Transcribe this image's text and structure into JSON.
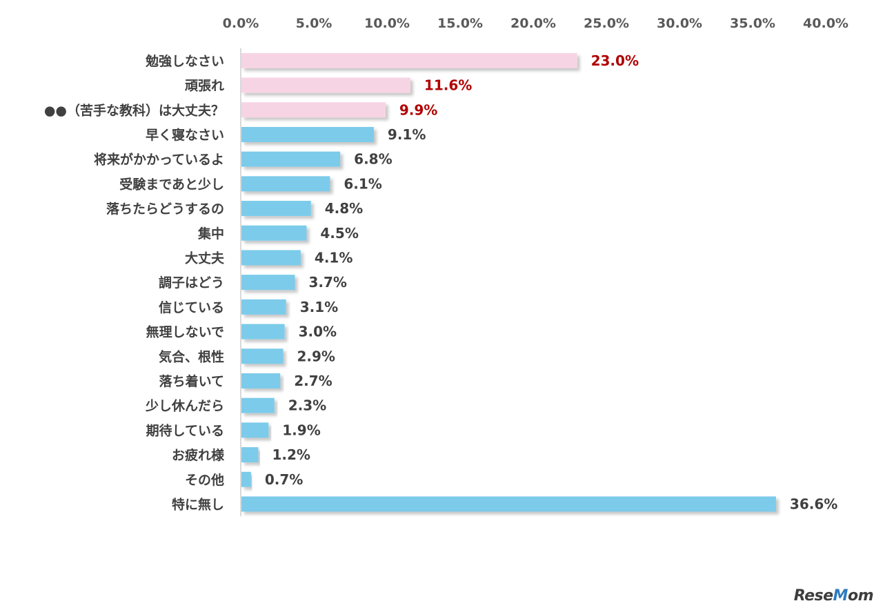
{
  "chart_data": {
    "type": "bar",
    "orientation": "horizontal",
    "xlim": [
      0,
      40
    ],
    "xticks": [
      "0.0%",
      "5.0%",
      "10.0%",
      "15.0%",
      "20.0%",
      "25.0%",
      "30.0%",
      "35.0%",
      "40.0%"
    ],
    "x_tick_position": "top",
    "categories": [
      "勉強しなさい",
      "頑張れ",
      "●●（苦手な教科）は大丈夫？",
      "早く寝なさい",
      "将来がかかっているよ",
      "受験まであと少し",
      "落ちたらどうするの",
      "集中",
      "大丈夫",
      "調子はどう",
      "信じている",
      "無理しないで",
      "気合、根性",
      "落ち着いて",
      "少し休んだら",
      "期待している",
      "お疲れ様",
      "その他",
      "特に無し"
    ],
    "values": [
      23.0,
      11.6,
      9.9,
      9.1,
      6.8,
      6.1,
      4.8,
      4.5,
      4.1,
      3.7,
      3.1,
      3.0,
      2.9,
      2.7,
      2.3,
      1.9,
      1.2,
      0.7,
      36.6
    ],
    "value_labels": [
      "23.0%",
      "11.6%",
      "9.9%",
      "9.1%",
      "6.8%",
      "6.1%",
      "4.8%",
      "4.5%",
      "4.1%",
      "3.7%",
      "3.1%",
      "3.0%",
      "2.9%",
      "2.7%",
      "2.3%",
      "1.9%",
      "1.2%",
      "0.7%",
      "36.6%"
    ],
    "highlight_count": 3,
    "colors": {
      "highlight_bar": "#f7d4e4",
      "normal_bar": "#7ccbea",
      "highlight_label": "#b00000",
      "normal_label": "#404040",
      "axis_line": "#d9d9d9"
    },
    "grid": false,
    "legend": "none"
  },
  "brand": {
    "logo_prefix": "Rese",
    "logo_accent": "M",
    "logo_suffix": "om"
  }
}
